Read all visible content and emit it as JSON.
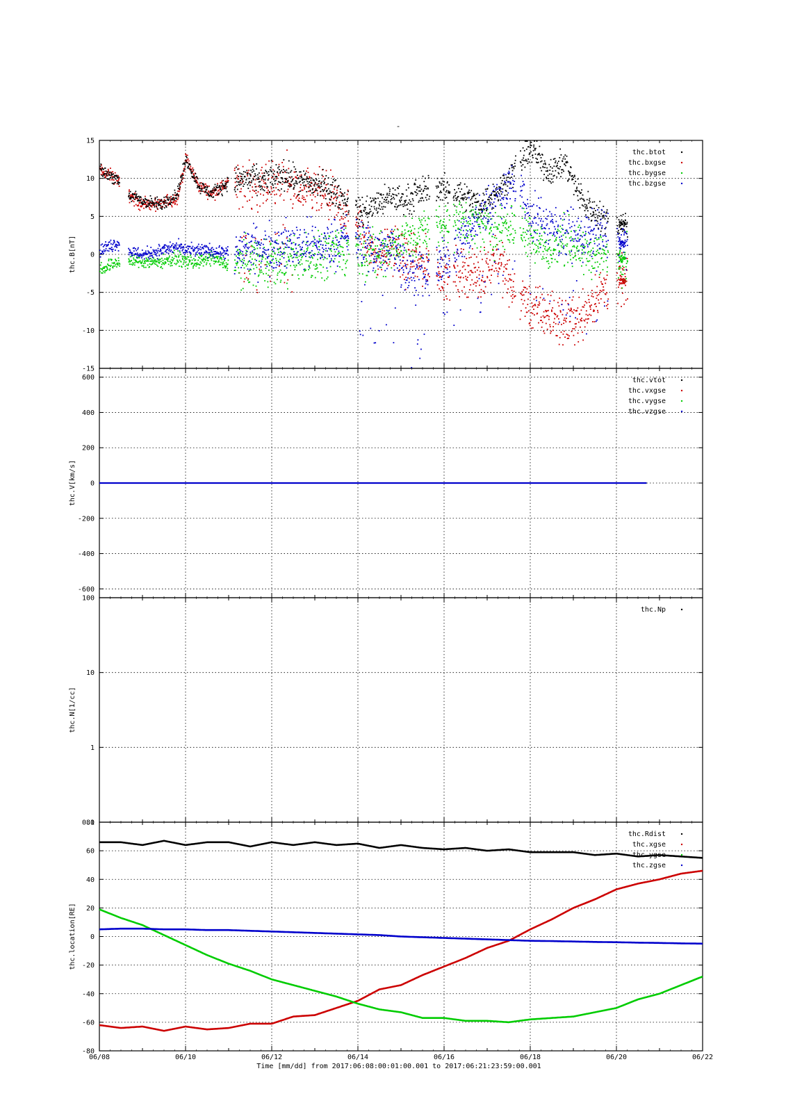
{
  "figure": {
    "title": "-",
    "x_axis": {
      "tick_labels": [
        "06/08",
        "06/10",
        "06/12",
        "06/14",
        "06/16",
        "06/18",
        "06/20",
        "06/22"
      ],
      "label": "Time [mm/dd]  from 2017:06:08:00:01:00.001  to  2017:06:21:23:59:00.001",
      "range_days": [
        0,
        14
      ]
    }
  },
  "colors": {
    "black": "#000000",
    "red": "#cc0000",
    "green": "#00cc00",
    "blue": "#0000cc"
  },
  "chart_data": [
    {
      "type": "scatter",
      "ylabel": "thc.B[nT]",
      "ylim": [
        -15,
        15
      ],
      "yticks": [
        -15,
        -10,
        -5,
        0,
        5,
        10,
        15
      ],
      "scale": "linear",
      "grid": true,
      "legend": [
        "thc.btot",
        "thc.bxgse",
        "thc.bygse",
        "thc.bzgse"
      ],
      "legend_position": "top-right",
      "x": [
        "06/08",
        "06/08.2",
        "06/08.4",
        "06/08.6",
        "06/09",
        "06/09.4",
        "06/09.8",
        "06/10",
        "06/10.3",
        "06/10.6",
        "06/11",
        "06/11.4",
        "06/11.8",
        "06/12",
        "06/12.3",
        "06/12.6",
        "06/13.2",
        "06/13.6",
        "06/14",
        "06/14.4",
        "06/14.8",
        "06/15.1",
        "06/15.7",
        "06/16",
        "06/16.4",
        "06/16.8",
        "06/17.2",
        "06/17.6",
        "06/18",
        "06/18.4",
        "06/18.8",
        "06/19.2",
        "06/19.6",
        "06/20.1"
      ],
      "series": [
        {
          "name": "thc.btot",
          "values": [
            11,
            10.5,
            10,
            8,
            7,
            6.5,
            8,
            12.5,
            9,
            8,
            9.5,
            10,
            9.5,
            10,
            10.5,
            9.5,
            9,
            7.5,
            5.5,
            6.5,
            7.5,
            7,
            9,
            8.5,
            8,
            6.5,
            8,
            11,
            14,
            11,
            12,
            7,
            5,
            4
          ]
        },
        {
          "name": "thc.bxgse",
          "values": [
            11,
            10.5,
            10,
            8,
            6.5,
            6.5,
            7.5,
            12.5,
            9,
            8,
            9.5,
            9.5,
            8.5,
            9.5,
            10,
            8,
            8,
            6,
            4,
            0,
            1,
            -1,
            -1,
            -3,
            -2,
            -3,
            0,
            -5,
            -7,
            -8,
            -9,
            -8,
            -5,
            -3.5
          ]
        },
        {
          "name": "thc.bygse",
          "values": [
            -2,
            -1.5,
            -1,
            -0.8,
            -1,
            -1,
            -0.5,
            -1,
            -1,
            -0.5,
            -1.5,
            -1,
            -0.5,
            -1,
            -1,
            -0.5,
            0,
            0.5,
            0.5,
            0,
            1,
            2,
            3,
            4,
            4,
            4,
            3,
            4,
            3,
            0,
            2,
            0,
            0,
            -0.5
          ]
        },
        {
          "name": "thc.bzgse",
          "values": [
            0.5,
            1,
            1.5,
            0.5,
            0,
            0.5,
            1,
            0.5,
            0.5,
            0.5,
            0,
            0.5,
            0.5,
            1,
            1,
            1.5,
            1,
            2,
            2,
            0,
            1,
            -2,
            -3,
            -1,
            2,
            5,
            7,
            10,
            5,
            4,
            3,
            2,
            3,
            1.5
          ]
        }
      ]
    },
    {
      "type": "scatter",
      "ylabel": "thc.V[km/s]",
      "ylim": [
        -650,
        650
      ],
      "yticks": [
        -600,
        -400,
        -200,
        0,
        200,
        400,
        600
      ],
      "scale": "linear",
      "grid": true,
      "legend": [
        "thc.vtot",
        "thc.vxgse",
        "thc.vygse",
        "thc.vzgse"
      ],
      "legend_position": "top-right",
      "x_range_days": [
        0,
        12.7
      ],
      "series": [
        {
          "name": "thc.vtot",
          "values": [
            0
          ]
        },
        {
          "name": "thc.vxgse",
          "values": [
            0
          ]
        },
        {
          "name": "thc.vygse",
          "values": [
            0
          ]
        },
        {
          "name": "thc.vzgse",
          "values": [
            0
          ]
        }
      ]
    },
    {
      "type": "scatter",
      "ylabel": "thc.N[1/cc]",
      "ylim": [
        0.1,
        100
      ],
      "yticks": [
        0.1,
        1,
        10,
        100
      ],
      "scale": "log",
      "grid": true,
      "legend": [
        "thc.Np"
      ],
      "legend_position": "top-right",
      "series": [
        {
          "name": "thc.Np",
          "values": []
        }
      ]
    },
    {
      "type": "line",
      "ylabel": "thc.location[RE]",
      "ylim": [
        -80,
        80
      ],
      "yticks": [
        -80,
        -60,
        -40,
        -20,
        0,
        20,
        40,
        60,
        80
      ],
      "scale": "linear",
      "grid": true,
      "legend": [
        "thc.Rdist",
        "thc.xgse",
        "thc.ygse",
        "thc.zgse"
      ],
      "legend_position": "top-right",
      "x": [
        "06/08",
        "06/08.5",
        "06/09",
        "06/09.5",
        "06/10",
        "06/10.5",
        "06/11",
        "06/11.5",
        "06/12",
        "06/12.5",
        "06/13",
        "06/13.5",
        "06/14",
        "06/14.5",
        "06/15",
        "06/15.5",
        "06/16",
        "06/16.5",
        "06/17",
        "06/17.5",
        "06/18",
        "06/18.5",
        "06/19",
        "06/19.5",
        "06/20",
        "06/20.5",
        "06/21",
        "06/21.5",
        "06/22"
      ],
      "series": [
        {
          "name": "thc.Rdist",
          "values": [
            66,
            66,
            64,
            67,
            64,
            66,
            66,
            63,
            66,
            64,
            66,
            64,
            65,
            62,
            64,
            62,
            61,
            62,
            60,
            61,
            59,
            59,
            59,
            57,
            58,
            56,
            57,
            56,
            55
          ]
        },
        {
          "name": "thc.xgse",
          "values": [
            -62,
            -64,
            -63,
            -66,
            -63,
            -65,
            -64,
            -61,
            -61,
            -56,
            -55,
            -50,
            -45,
            -37,
            -34,
            -27,
            -21,
            -15,
            -8,
            -3,
            5,
            12,
            20,
            26,
            33,
            37,
            40,
            44,
            46
          ]
        },
        {
          "name": "thc.ygse",
          "values": [
            19,
            13,
            8,
            1,
            -6,
            -13,
            -19,
            -24,
            -30,
            -34,
            -38,
            -42,
            -47,
            -51,
            -53,
            -57,
            -57,
            -59,
            -59,
            -60,
            -58,
            -57,
            -56,
            -53,
            -50,
            -44,
            -40,
            -34,
            -28
          ]
        },
        {
          "name": "thc.zgse",
          "values": [
            5,
            5.5,
            5.5,
            5,
            5,
            4.5,
            4.5,
            4,
            3.5,
            3,
            2.5,
            2,
            1.5,
            1,
            0,
            -0.5,
            -1,
            -1.5,
            -2,
            -2.5,
            -3,
            -3.2,
            -3.5,
            -3.8,
            -4,
            -4.3,
            -4.5,
            -4.8,
            -5
          ]
        }
      ]
    }
  ]
}
